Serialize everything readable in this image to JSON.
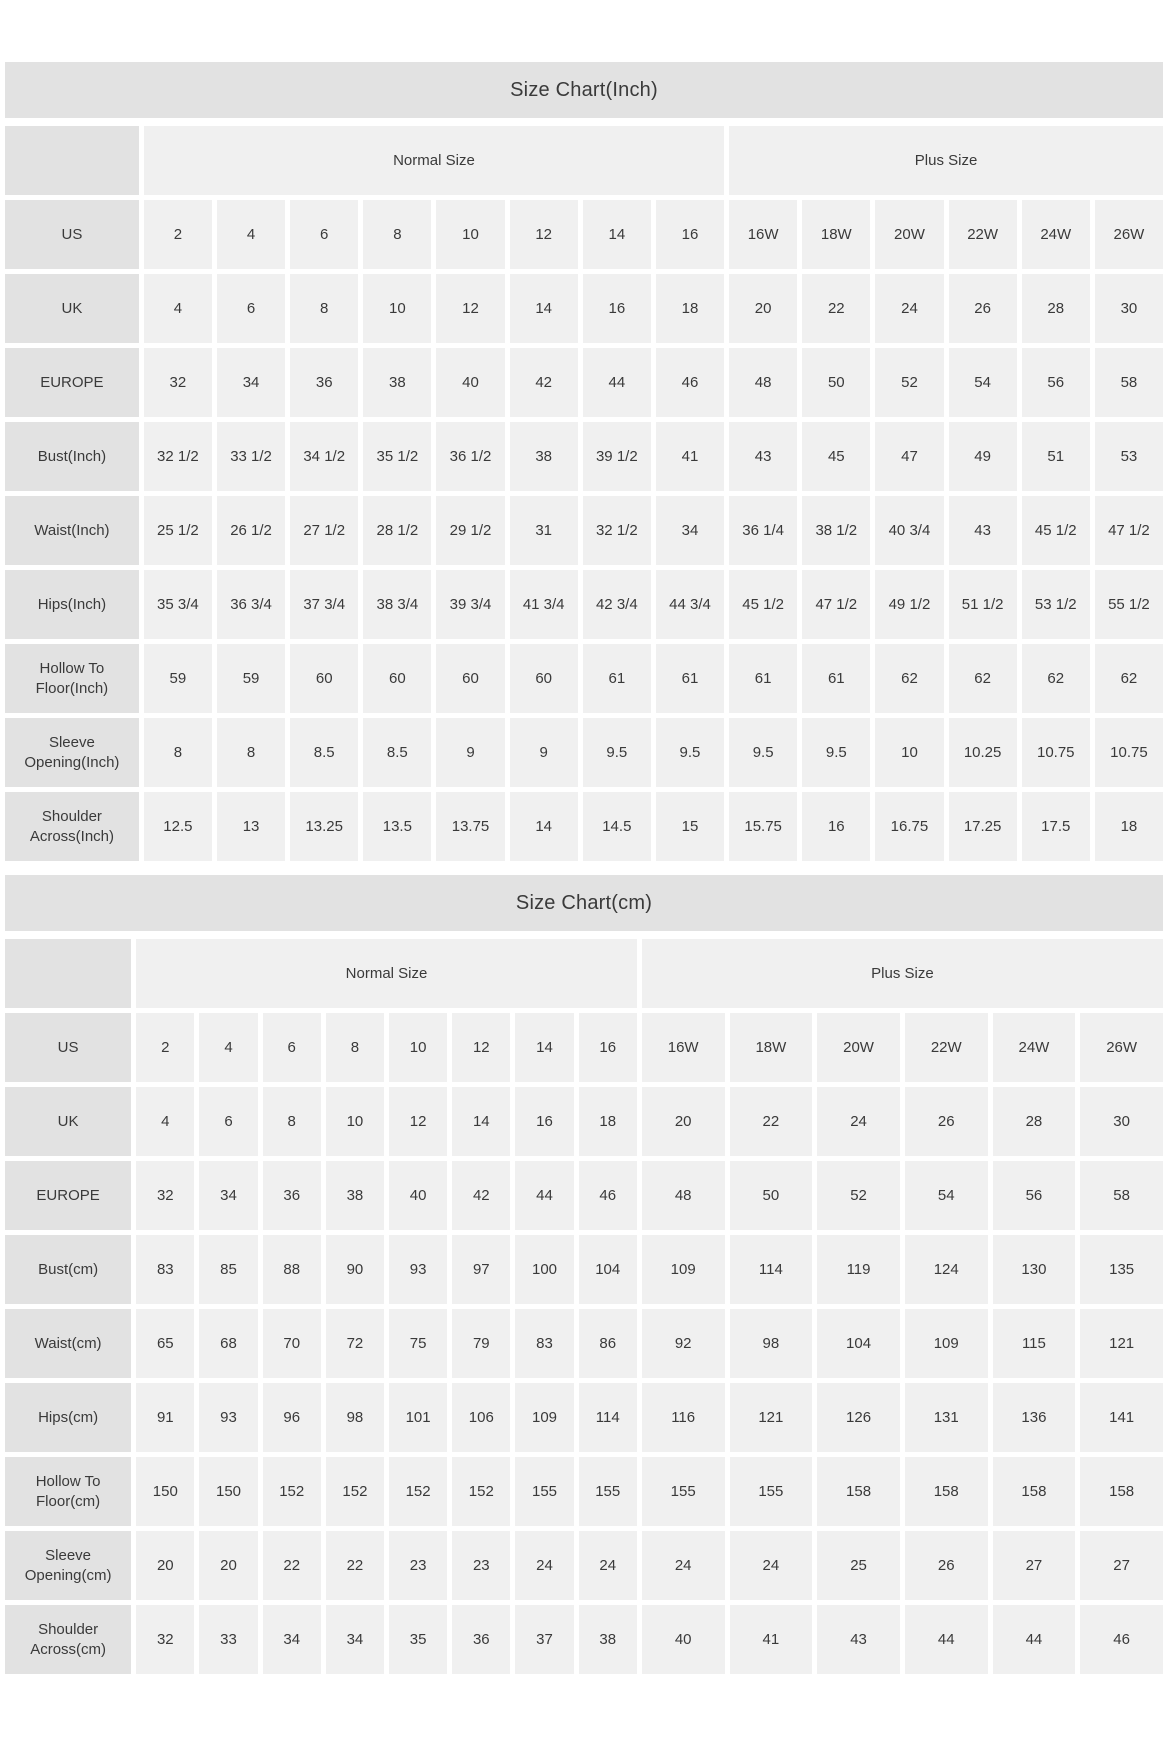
{
  "colors": {
    "title_bar_bg": "#e2e2e2",
    "label_cell_bg": "#e2e2e2",
    "data_cell_bg": "#f0f0f0",
    "gap_bg": "#ffffff",
    "text": "#3a3a3a"
  },
  "tables": [
    {
      "title": "Size Chart(Inch)",
      "groups": [
        {
          "label": "Normal Size",
          "span": 8
        },
        {
          "label": "Plus Size",
          "span": 6
        }
      ],
      "rows": [
        {
          "label": "US",
          "values": [
            "2",
            "4",
            "6",
            "8",
            "10",
            "12",
            "14",
            "16",
            "16W",
            "18W",
            "20W",
            "22W",
            "24W",
            "26W"
          ]
        },
        {
          "label": "UK",
          "values": [
            "4",
            "6",
            "8",
            "10",
            "12",
            "14",
            "16",
            "18",
            "20",
            "22",
            "24",
            "26",
            "28",
            "30"
          ]
        },
        {
          "label": "EUROPE",
          "values": [
            "32",
            "34",
            "36",
            "38",
            "40",
            "42",
            "44",
            "46",
            "48",
            "50",
            "52",
            "54",
            "56",
            "58"
          ]
        },
        {
          "label": "Bust(Inch)",
          "values": [
            "32 1/2",
            "33 1/2",
            "34 1/2",
            "35 1/2",
            "36 1/2",
            "38",
            "39 1/2",
            "41",
            "43",
            "45",
            "47",
            "49",
            "51",
            "53"
          ]
        },
        {
          "label": "Waist(Inch)",
          "values": [
            "25 1/2",
            "26 1/2",
            "27 1/2",
            "28 1/2",
            "29 1/2",
            "31",
            "32 1/2",
            "34",
            "36 1/4",
            "38 1/2",
            "40 3/4",
            "43",
            "45 1/2",
            "47 1/2"
          ]
        },
        {
          "label": "Hips(Inch)",
          "values": [
            "35 3/4",
            "36 3/4",
            "37 3/4",
            "38 3/4",
            "39 3/4",
            "41 3/4",
            "42 3/4",
            "44 3/4",
            "45 1/2",
            "47 1/2",
            "49 1/2",
            "51 1/2",
            "53 1/2",
            "55 1/2"
          ]
        },
        {
          "label": "Hollow To Floor(Inch)",
          "values": [
            "59",
            "59",
            "60",
            "60",
            "60",
            "60",
            "61",
            "61",
            "61",
            "61",
            "62",
            "62",
            "62",
            "62"
          ]
        },
        {
          "label": "Sleeve Opening(Inch)",
          "values": [
            "8",
            "8",
            "8.5",
            "8.5",
            "9",
            "9",
            "9.5",
            "9.5",
            "9.5",
            "9.5",
            "10",
            "10.25",
            "10.75",
            "10.75"
          ]
        },
        {
          "label": "Shoulder Across(Inch)",
          "values": [
            "12.5",
            "13",
            "13.25",
            "13.5",
            "13.75",
            "14",
            "14.5",
            "15",
            "15.75",
            "16",
            "16.75",
            "17.25",
            "17.5",
            "18"
          ]
        }
      ]
    },
    {
      "title": "Size Chart(cm)",
      "groups": [
        {
          "label": "Normal Size",
          "span": 8
        },
        {
          "label": "Plus Size",
          "span": 6
        }
      ],
      "rows": [
        {
          "label": "US",
          "values": [
            "2",
            "4",
            "6",
            "8",
            "10",
            "12",
            "14",
            "16",
            "16W",
            "18W",
            "20W",
            "22W",
            "24W",
            "26W"
          ]
        },
        {
          "label": "UK",
          "values": [
            "4",
            "6",
            "8",
            "10",
            "12",
            "14",
            "16",
            "18",
            "20",
            "22",
            "24",
            "26",
            "28",
            "30"
          ]
        },
        {
          "label": "EUROPE",
          "values": [
            "32",
            "34",
            "36",
            "38",
            "40",
            "42",
            "44",
            "46",
            "48",
            "50",
            "52",
            "54",
            "56",
            "58"
          ]
        },
        {
          "label": "Bust(cm)",
          "values": [
            "83",
            "85",
            "88",
            "90",
            "93",
            "97",
            "100",
            "104",
            "109",
            "114",
            "119",
            "124",
            "130",
            "135"
          ]
        },
        {
          "label": "Waist(cm)",
          "values": [
            "65",
            "68",
            "70",
            "72",
            "75",
            "79",
            "83",
            "86",
            "92",
            "98",
            "104",
            "109",
            "115",
            "121"
          ]
        },
        {
          "label": "Hips(cm)",
          "values": [
            "91",
            "93",
            "96",
            "98",
            "101",
            "106",
            "109",
            "114",
            "116",
            "121",
            "126",
            "131",
            "136",
            "141"
          ]
        },
        {
          "label": "Hollow To Floor(cm)",
          "values": [
            "150",
            "150",
            "152",
            "152",
            "152",
            "152",
            "155",
            "155",
            "155",
            "155",
            "158",
            "158",
            "158",
            "158"
          ]
        },
        {
          "label": "Sleeve Opening(cm)",
          "values": [
            "20",
            "20",
            "22",
            "22",
            "23",
            "23",
            "24",
            "24",
            "24",
            "24",
            "25",
            "26",
            "27",
            "27"
          ]
        },
        {
          "label": "Shoulder Across(cm)",
          "values": [
            "32",
            "33",
            "34",
            "34",
            "35",
            "36",
            "37",
            "38",
            "40",
            "41",
            "43",
            "44",
            "44",
            "46"
          ]
        }
      ]
    }
  ]
}
